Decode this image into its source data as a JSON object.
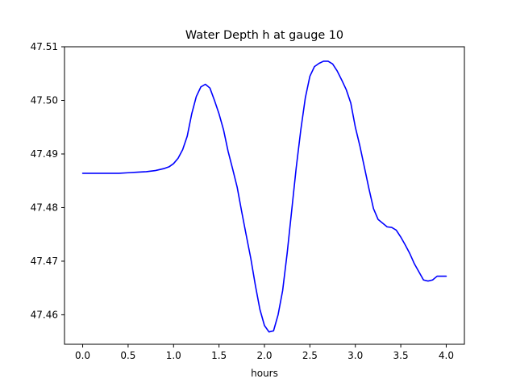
{
  "chart_data": {
    "type": "line",
    "title": "Water Depth h at gauge 10",
    "xlabel": "hours",
    "ylabel": "",
    "xlim": [
      -0.2,
      4.2
    ],
    "ylim": [
      47.4545,
      47.51
    ],
    "x_ticks": [
      0.0,
      0.5,
      1.0,
      1.5,
      2.0,
      2.5,
      3.0,
      3.5,
      4.0
    ],
    "x_tick_labels": [
      "0.0",
      "0.5",
      "1.0",
      "1.5",
      "2.0",
      "2.5",
      "3.0",
      "3.5",
      "4.0"
    ],
    "y_ticks": [
      47.46,
      47.47,
      47.48,
      47.49,
      47.5,
      47.51
    ],
    "y_tick_labels": [
      "47.46",
      "47.47",
      "47.48",
      "47.49",
      "47.50",
      "47.51"
    ],
    "grid": false,
    "legend": "none",
    "series": [
      {
        "color": "#0000ff",
        "x": [
          0.0,
          0.1,
          0.2,
          0.3,
          0.4,
          0.5,
          0.6,
          0.7,
          0.8,
          0.9,
          0.95,
          1.0,
          1.05,
          1.1,
          1.15,
          1.2,
          1.25,
          1.3,
          1.35,
          1.4,
          1.45,
          1.5,
          1.55,
          1.6,
          1.65,
          1.7,
          1.75,
          1.8,
          1.85,
          1.9,
          1.95,
          2.0,
          2.05,
          2.1,
          2.15,
          2.2,
          2.25,
          2.3,
          2.35,
          2.4,
          2.45,
          2.5,
          2.55,
          2.6,
          2.65,
          2.7,
          2.75,
          2.8,
          2.85,
          2.9,
          2.95,
          3.0,
          3.05,
          3.1,
          3.15,
          3.2,
          3.25,
          3.3,
          3.35,
          3.4,
          3.45,
          3.5,
          3.55,
          3.6,
          3.65,
          3.7,
          3.75,
          3.8,
          3.85,
          3.9,
          3.95,
          4.0
        ],
        "values": [
          47.4864,
          47.4864,
          47.4864,
          47.4864,
          47.4864,
          47.4865,
          47.4866,
          47.4867,
          47.4869,
          47.4873,
          47.4876,
          47.4882,
          47.4892,
          47.4908,
          47.4933,
          47.4975,
          47.5007,
          47.5025,
          47.503,
          47.5023,
          47.5,
          47.4975,
          47.4945,
          47.4905,
          47.4872,
          47.4838,
          47.4792,
          47.4748,
          47.4705,
          47.4655,
          47.461,
          47.458,
          47.4568,
          47.457,
          47.46,
          47.4645,
          47.4715,
          47.4795,
          47.4875,
          47.4945,
          47.5005,
          47.5045,
          47.5063,
          47.5069,
          47.5073,
          47.5073,
          47.5068,
          47.5055,
          47.5038,
          47.502,
          47.4995,
          47.495,
          47.4915,
          47.4875,
          47.4835,
          47.4798,
          47.4778,
          47.4771,
          47.4764,
          47.4763,
          47.4758,
          47.4745,
          47.473,
          47.4714,
          47.4695,
          47.468,
          47.4665,
          47.4663,
          47.4665,
          47.4672,
          47.4672,
          47.4672
        ]
      }
    ]
  }
}
